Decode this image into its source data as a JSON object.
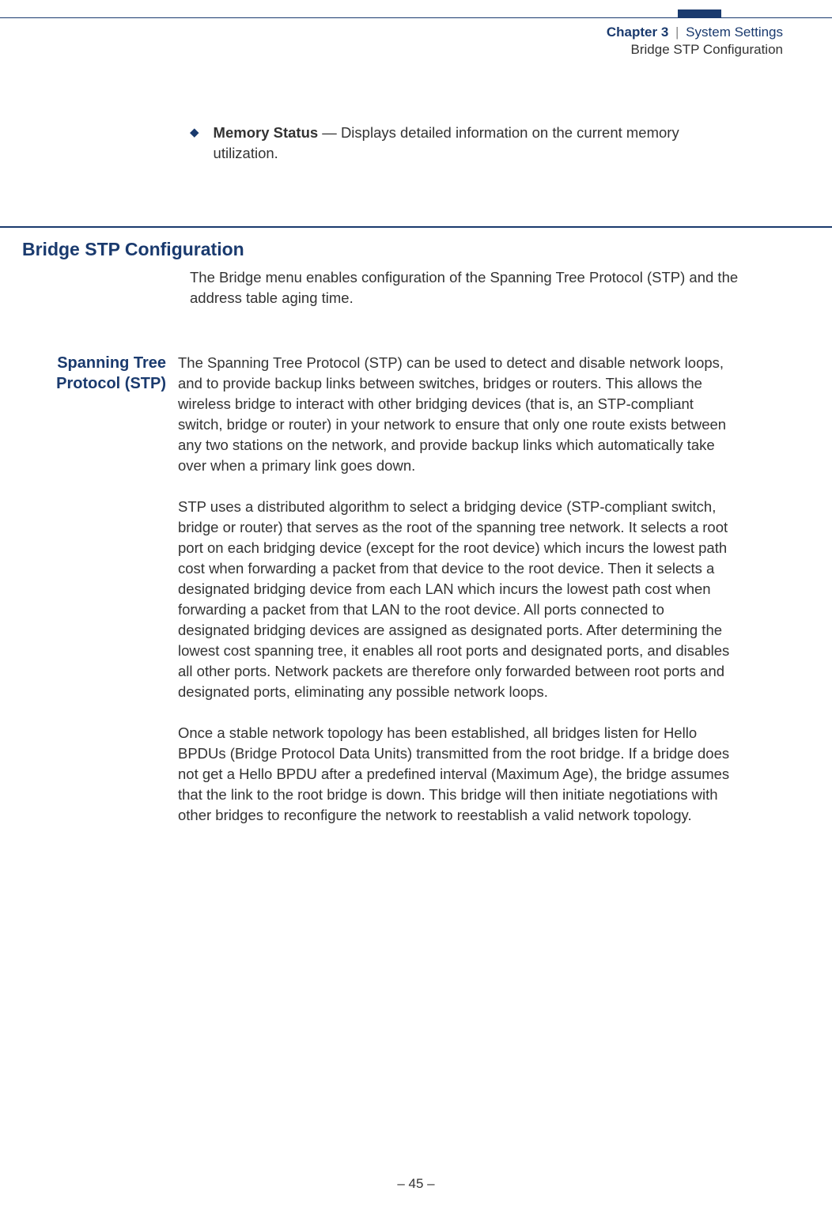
{
  "header": {
    "chapter_label": "Chapter 3",
    "separator": "|",
    "chapter_title": "System Settings",
    "sub": "Bridge STP Configuration"
  },
  "bullet": {
    "marker": "◆",
    "bold": "Memory Status",
    "rest": " — Displays detailed information on the current memory utilization."
  },
  "section": {
    "heading": "Bridge STP Configuration",
    "intro": "The Bridge menu enables configuration of the Spanning Tree Protocol (STP) and the address table aging time."
  },
  "subsection": {
    "margin_heading_line1": "Spanning Tree",
    "margin_heading_line2": "Protocol (STP)",
    "p1": "The Spanning Tree Protocol (STP) can be used to detect and disable network loops, and to provide backup links between switches, bridges or routers. This allows the wireless bridge to interact with other bridging devices (that is, an STP-compliant switch, bridge or router) in your network to ensure that only one route exists between any two stations on the network, and provide backup links which automatically take over when a primary link goes down.",
    "p2": "STP uses a distributed algorithm to select a bridging device (STP-compliant switch, bridge or router) that serves as the root of the spanning tree network. It selects a root port on each bridging device (except for the root device) which incurs the lowest path cost when forwarding a packet from that device to the root device. Then it selects a designated bridging device from each LAN which incurs the lowest path cost when forwarding a packet from that LAN to the root device. All ports connected to designated bridging devices are assigned as designated ports. After determining the lowest cost spanning tree, it enables all root ports and designated ports, and disables all other ports. Network packets are therefore only forwarded between root ports and designated ports, eliminating any possible network loops.",
    "p3": "Once a stable network topology has been established, all bridges listen for Hello BPDUs (Bridge Protocol Data Units) transmitted from the root bridge. If a bridge does not get a Hello BPDU after a predefined interval (Maximum Age), the bridge assumes that the link to the root bridge is down. This bridge will then initiate negotiations with other bridges to reconfigure the network to reestablish a valid network topology."
  },
  "footer": {
    "page": "–  45  –"
  }
}
